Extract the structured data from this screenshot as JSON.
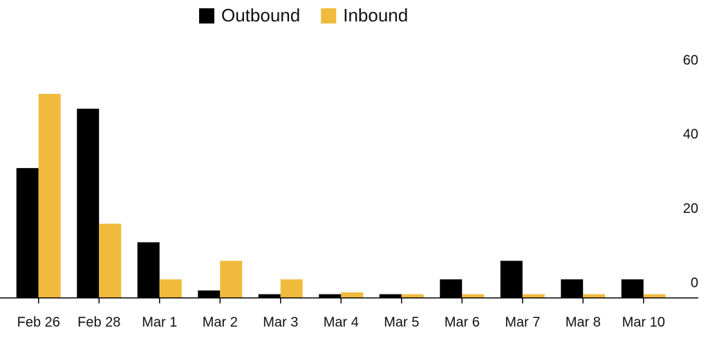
{
  "chart_data": {
    "type": "bar",
    "categories": [
      "Feb 26",
      "Feb 28",
      "Mar 1",
      "Mar 2",
      "Mar 3",
      "Mar 4",
      "Mar 5",
      "Mar 6",
      "Mar 7",
      "Mar 8",
      "Mar 10"
    ],
    "series": [
      {
        "name": "Outbound",
        "color": "#000000",
        "values": [
          35,
          51,
          15,
          2,
          1,
          1,
          1,
          5,
          10,
          5,
          5
        ]
      },
      {
        "name": "Inbound",
        "color": "#f0bb3c",
        "values": [
          55,
          20,
          5,
          10,
          5,
          1.5,
          1,
          1,
          1,
          1,
          1
        ]
      }
    ],
    "ylim": [
      0,
      60
    ],
    "yticks": [
      0,
      20,
      40,
      60
    ]
  }
}
